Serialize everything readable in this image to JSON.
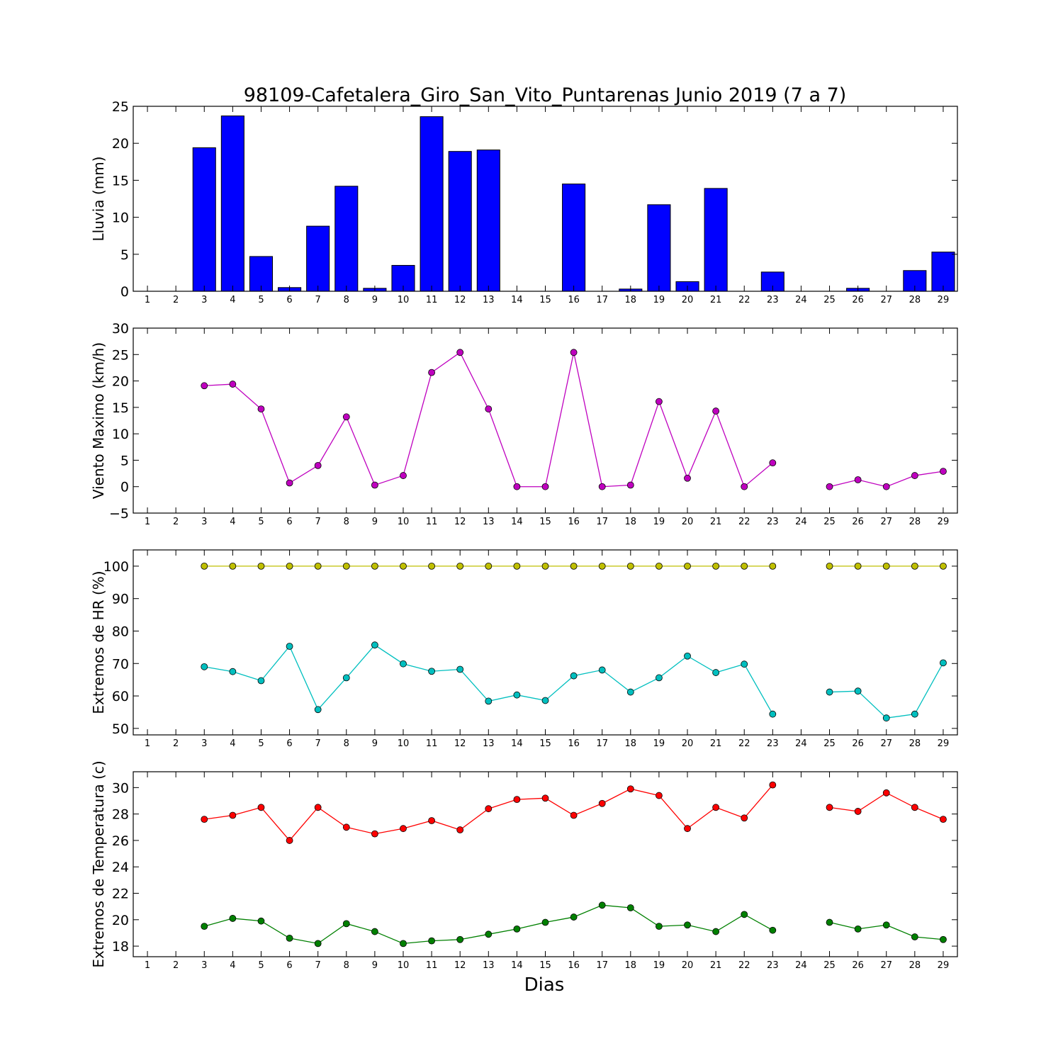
{
  "title": "98109-Cafetalera_Giro_San_Vito_Puntarenas Junio 2019  (7 a 7)",
  "xlabel": "Dias",
  "chart_data": [
    {
      "type": "bar",
      "ylabel": "Lluvia (mm)",
      "ylim": [
        0,
        25
      ],
      "yticks": [
        0,
        5,
        10,
        15,
        20,
        25
      ],
      "xlim": [
        0.5,
        29.5
      ],
      "x": [
        1,
        2,
        3,
        4,
        5,
        6,
        7,
        8,
        9,
        10,
        11,
        12,
        13,
        14,
        15,
        16,
        17,
        18,
        19,
        20,
        21,
        22,
        23,
        24,
        25,
        26,
        27,
        28,
        29
      ],
      "series": [
        {
          "color": "#0000ff",
          "values": [
            0,
            0,
            19.4,
            23.7,
            4.7,
            0.5,
            8.8,
            14.2,
            0.4,
            3.5,
            23.6,
            18.9,
            19.1,
            0,
            0,
            14.5,
            0,
            0.3,
            11.7,
            1.3,
            13.9,
            0,
            2.6,
            0,
            0,
            0.4,
            0,
            2.8,
            5.3
          ]
        }
      ]
    },
    {
      "type": "line",
      "ylabel": "Viento Maximo (km/h)",
      "ylim": [
        -5,
        30
      ],
      "yticks": [
        -5,
        0,
        5,
        10,
        15,
        20,
        25,
        30
      ],
      "xlim": [
        0.5,
        29.5
      ],
      "x": [
        1,
        2,
        3,
        4,
        5,
        6,
        7,
        8,
        9,
        10,
        11,
        12,
        13,
        14,
        15,
        16,
        17,
        18,
        19,
        20,
        21,
        22,
        23,
        24,
        25,
        26,
        27,
        28,
        29
      ],
      "series": [
        {
          "color": "#bf00bf",
          "values": [
            null,
            null,
            19.1,
            19.4,
            14.7,
            0.7,
            4.0,
            13.2,
            0.3,
            2.1,
            21.6,
            25.4,
            14.7,
            0,
            0,
            25.4,
            0,
            0.3,
            16.1,
            1.6,
            14.3,
            0,
            4.5,
            null,
            0,
            1.3,
            0,
            2.1,
            2.9
          ]
        }
      ]
    },
    {
      "type": "line",
      "ylabel": "Extremos de HR (%)",
      "ylim": [
        48,
        105
      ],
      "yticks": [
        50,
        60,
        70,
        80,
        90,
        100
      ],
      "xlim": [
        0.5,
        29.5
      ],
      "x": [
        1,
        2,
        3,
        4,
        5,
        6,
        7,
        8,
        9,
        10,
        11,
        12,
        13,
        14,
        15,
        16,
        17,
        18,
        19,
        20,
        21,
        22,
        23,
        24,
        25,
        26,
        27,
        28,
        29
      ],
      "series": [
        {
          "color": "#bfbf00",
          "values": [
            null,
            null,
            100,
            100,
            100,
            100,
            100,
            100,
            100,
            100,
            100,
            100,
            100,
            100,
            100,
            100,
            100,
            100,
            100,
            100,
            100,
            100,
            100,
            null,
            100,
            100,
            100,
            100,
            100
          ]
        },
        {
          "color": "#00bfbf",
          "values": [
            null,
            null,
            69,
            67.5,
            64.7,
            75.3,
            55.8,
            65.6,
            75.7,
            69.9,
            67.6,
            68.2,
            58.4,
            60.3,
            58.6,
            66.2,
            68.0,
            61.2,
            65.6,
            72.3,
            67.2,
            69.8,
            54.4,
            null,
            61.2,
            61.5,
            53.2,
            54.4,
            70.2
          ]
        }
      ]
    },
    {
      "type": "line",
      "ylabel": "Extremos de Temperatura (c)",
      "ylim": [
        17.2,
        31.2
      ],
      "yticks": [
        18,
        20,
        22,
        24,
        26,
        28,
        30
      ],
      "xlim": [
        0.5,
        29.5
      ],
      "x": [
        1,
        2,
        3,
        4,
        5,
        6,
        7,
        8,
        9,
        10,
        11,
        12,
        13,
        14,
        15,
        16,
        17,
        18,
        19,
        20,
        21,
        22,
        23,
        24,
        25,
        26,
        27,
        28,
        29
      ],
      "series": [
        {
          "color": "#ff0000",
          "values": [
            null,
            null,
            27.6,
            27.9,
            28.5,
            26.0,
            28.5,
            27.0,
            26.5,
            26.9,
            27.5,
            26.8,
            28.4,
            29.1,
            29.2,
            27.9,
            28.8,
            29.9,
            29.4,
            26.9,
            28.5,
            27.7,
            30.2,
            null,
            28.5,
            28.2,
            29.6,
            28.5,
            27.6
          ]
        },
        {
          "color": "#008000",
          "values": [
            null,
            null,
            19.5,
            20.1,
            19.9,
            18.6,
            18.2,
            19.7,
            19.1,
            18.2,
            18.4,
            18.5,
            18.9,
            19.3,
            19.8,
            20.2,
            21.1,
            20.9,
            19.5,
            19.6,
            19.1,
            20.4,
            19.2,
            null,
            19.8,
            19.3,
            19.6,
            18.7,
            18.5
          ]
        }
      ]
    }
  ]
}
